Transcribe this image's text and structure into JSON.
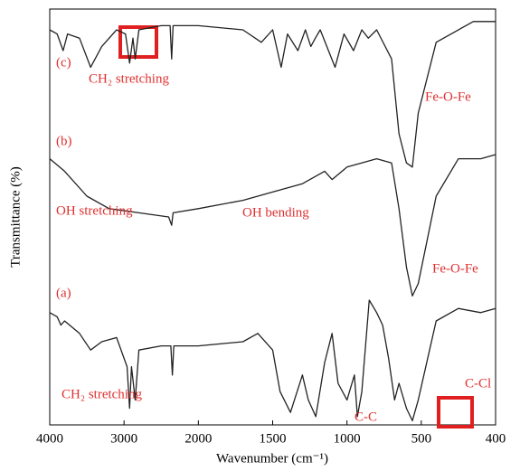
{
  "chart_data": {
    "type": "line",
    "xlabel": "Wavenumber (cm⁻¹)",
    "ylabel": "Transmittance (%)",
    "xlim": [
      4000,
      400
    ],
    "xticks": [
      4000,
      3000,
      2000,
      1500,
      1000,
      500,
      400
    ],
    "ylim": [
      0,
      100
    ],
    "annotations": [
      "(c)",
      "CH₂ stretching",
      "Fe-O-Fe",
      "(b)",
      "OH stretching",
      "OH bending",
      "Fe-O-Fe",
      "(a)",
      "CH₂ stretching",
      "C-C",
      "C-Cl"
    ],
    "series": [
      {
        "color": "#222222",
        "x": [
          4000,
          3900,
          3820,
          3760,
          3600,
          3450,
          3300,
          3100,
          2980,
          2925,
          2880,
          2850,
          2800,
          2500,
          2380,
          2360,
          2340,
          2000,
          1700,
          1576,
          1500,
          1443,
          1400,
          1330,
          1280,
          1243,
          1213,
          1180,
          1080,
          1020,
          956,
          900,
          856,
          800,
          700,
          650,
          600,
          560,
          520,
          480,
          430,
          400
        ],
        "values": [
          95,
          94,
          90,
          94,
          93,
          86,
          91,
          95,
          94,
          87,
          93,
          88,
          95,
          96,
          96,
          88,
          96,
          96,
          95,
          92,
          95,
          86,
          94,
          90,
          95,
          91,
          93,
          95,
          86,
          94,
          90,
          95,
          93,
          95,
          88,
          70,
          63,
          62,
          75,
          92,
          97,
          97
        ]
      },
      {
        "color": "#222222",
        "x": [
          4000,
          3800,
          3500,
          3200,
          2800,
          2400,
          2360,
          2340,
          2000,
          1700,
          1500,
          1300,
          1150,
          1100,
          1000,
          800,
          700,
          650,
          600,
          560,
          520,
          480,
          450,
          420,
          400
        ],
        "values": [
          64,
          61,
          55,
          52,
          51,
          50,
          48,
          51,
          52,
          54,
          56,
          58,
          61,
          59,
          62,
          64,
          63,
          52,
          38,
          31,
          34,
          55,
          64,
          64,
          65
        ]
      },
      {
        "color": "#222222",
        "x": [
          4000,
          3900,
          3850,
          3800,
          3600,
          3450,
          3300,
          3100,
          2960,
          2925,
          2900,
          2850,
          2800,
          2500,
          2370,
          2350,
          2330,
          2000,
          1700,
          1600,
          1500,
          1450,
          1380,
          1300,
          1260,
          1210,
          1150,
          1100,
          1060,
          1000,
          950,
          930,
          900,
          850,
          800,
          760,
          720,
          680,
          650,
          600,
          560,
          520,
          480,
          450,
          420,
          400
        ],
        "values": [
          27,
          26,
          24,
          25,
          22,
          18,
          20,
          21,
          14,
          4,
          14,
          6,
          18,
          19,
          19,
          12,
          19,
          19,
          20,
          22,
          18,
          8,
          3,
          12,
          6,
          2,
          15,
          22,
          10,
          6,
          12,
          2,
          8,
          30,
          27,
          24,
          16,
          6,
          10,
          4,
          1,
          6,
          25,
          28,
          27,
          28
        ]
      }
    ]
  }
}
